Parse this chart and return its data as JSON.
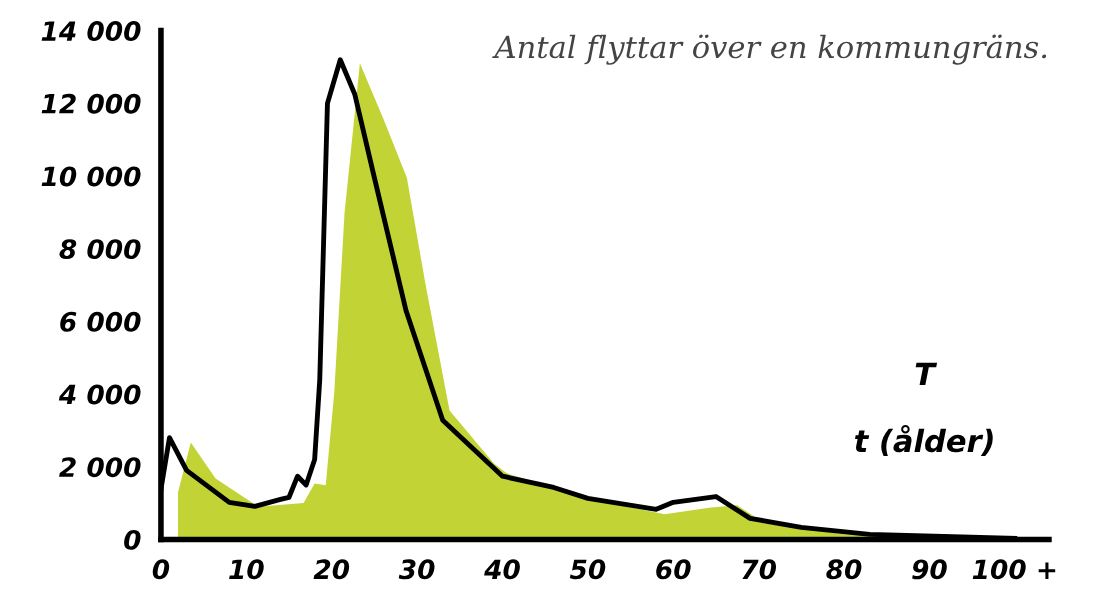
{
  "chart_data": {
    "type": "line",
    "title": "Antal flyttar över en kommungräns.",
    "annotations": [
      "T",
      "t (ålder)"
    ],
    "series": [
      {
        "type": "area",
        "color": "#c2d335",
        "x": [
          2,
          2,
          3.5,
          6.4,
          11.4,
          16.7,
          18,
          19.3,
          20.3,
          21.5,
          23.3,
          26,
          28.8,
          31,
          33.8,
          39,
          40.5,
          50,
          59,
          64.4,
          67.5,
          70.7,
          80,
          90,
          102
        ],
        "values": [
          0,
          1300,
          2670,
          1680,
          900,
          1000,
          1540,
          1490,
          4050,
          8980,
          13100,
          11600,
          9950,
          7000,
          3550,
          2090,
          1820,
          1130,
          690,
          880,
          940,
          440,
          140,
          40,
          0
        ]
      },
      {
        "color": "#000000",
        "x": [
          0,
          1,
          3,
          8,
          11,
          14,
          15,
          16,
          17,
          18,
          18.6,
          19.5,
          21,
          22.7,
          25,
          28.7,
          33,
          40,
          46,
          50,
          58,
          60,
          65,
          69,
          75,
          83,
          100
        ],
        "values": [
          1380,
          2800,
          1900,
          1020,
          910,
          1100,
          1160,
          1740,
          1500,
          2200,
          4400,
          12000,
          13200,
          12250,
          9950,
          6300,
          3280,
          1740,
          1430,
          1130,
          830,
          1020,
          1180,
          580,
          330,
          140,
          30
        ]
      }
    ],
    "xlim": [
      0,
      104
    ],
    "xticks": [
      0,
      10,
      20,
      30,
      40,
      50,
      60,
      70,
      80,
      90,
      {
        "value": 100,
        "label": "100 +"
      }
    ],
    "ylim": [
      0,
      14000
    ],
    "yticks": [
      0,
      {
        "value": 2000,
        "label": "2 000"
      },
      {
        "value": 4000,
        "label": "4 000"
      },
      {
        "value": 6000,
        "label": "6 000"
      },
      {
        "value": 8000,
        "label": "8 000"
      },
      {
        "value": 10000,
        "label": "10 000"
      },
      {
        "value": 12000,
        "label": "12 000"
      },
      {
        "value": 14000,
        "label": "14 000"
      }
    ],
    "grid": false,
    "legend": false,
    "line_style": "solid",
    "marker": "none"
  }
}
